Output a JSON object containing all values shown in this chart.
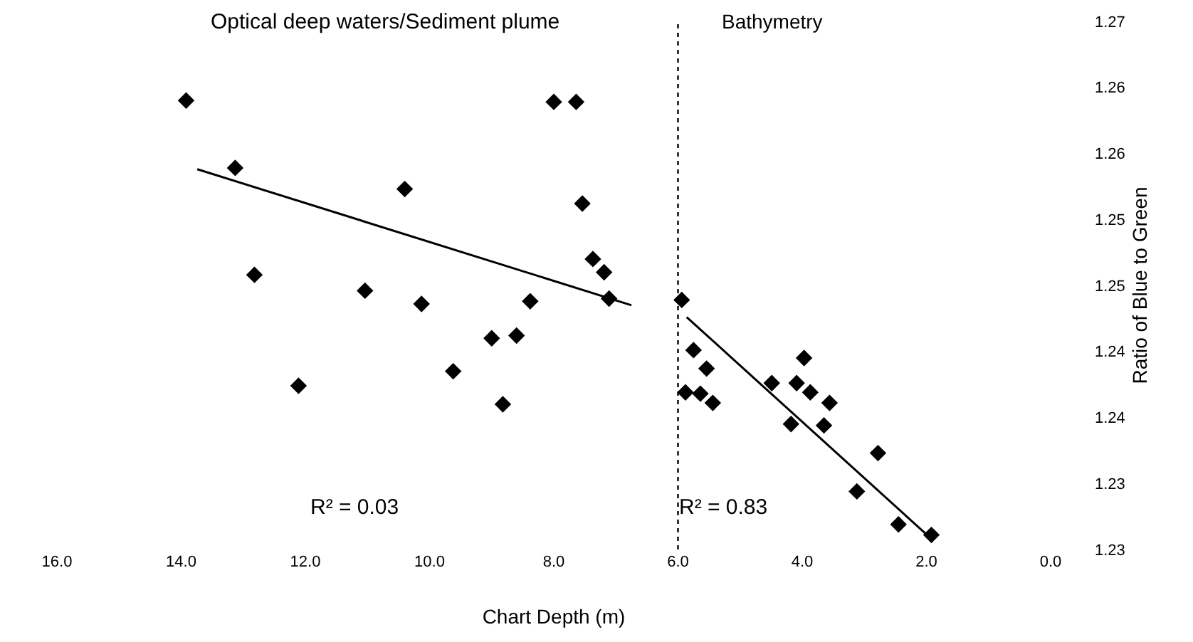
{
  "chart_data": {
    "type": "scatter",
    "xlabel": "Chart Depth (m)",
    "ylabel": "Ratio of Blue to Green",
    "marker": "diamond",
    "grid": false,
    "legend": false,
    "xlim": [
      16,
      0
    ],
    "xticks": [
      {
        "value": 16,
        "label": "16.0"
      },
      {
        "value": 14,
        "label": "14.0"
      },
      {
        "value": 12,
        "label": "12.0"
      },
      {
        "value": 10,
        "label": "10.0"
      },
      {
        "value": 8,
        "label": "8.0"
      },
      {
        "value": 6,
        "label": "6.0"
      },
      {
        "value": 4,
        "label": "4.0"
      },
      {
        "value": 2,
        "label": "2.0"
      },
      {
        "value": 0,
        "label": "0.0"
      }
    ],
    "ylim": [
      1.23,
      1.27
    ],
    "yticks": [
      1.23,
      {
        "value": 1.235,
        "label": "1.23"
      },
      1.24,
      {
        "value": 1.245,
        "label": "1.24"
      },
      1.25,
      {
        "value": 1.255,
        "label": "1.25"
      },
      1.26,
      {
        "value": 1.265,
        "label": "1.26"
      },
      1.27
    ],
    "series": [
      {
        "color": "#000000",
        "x": [
          13.92,
          13.13,
          12.82,
          12.11,
          11.04,
          10.4,
          10.13,
          9.62,
          9.0,
          8.82,
          8.6,
          8.38,
          8.0,
          7.64,
          7.54,
          7.37,
          7.19,
          7.11
        ],
        "values": [
          1.264,
          1.2589,
          1.2508,
          1.2424,
          1.2496,
          1.2573,
          1.2486,
          1.2435,
          1.246,
          1.241,
          1.2462,
          1.2488,
          1.2639,
          1.2639,
          1.2562,
          1.252,
          1.251,
          1.249
        ]
      },
      {
        "color": "#000000",
        "x": [
          5.94,
          5.75,
          5.54,
          5.88,
          5.64,
          5.44,
          4.49,
          4.18,
          3.97,
          4.09,
          3.87,
          3.56,
          3.65,
          2.78,
          3.12,
          2.45,
          1.92
        ],
        "values": [
          1.2489,
          1.2451,
          1.2437,
          1.2419,
          1.2418,
          1.2411,
          1.2426,
          1.2395,
          1.2445,
          1.2426,
          1.2419,
          1.2411,
          1.2394,
          1.2373,
          1.2344,
          1.2319,
          1.2311
        ]
      },
      {
        "type": "line",
        "marker": "none",
        "color": "#000000",
        "x": [
          13.74,
          6.75
        ],
        "values": [
          1.2588,
          1.2485
        ]
      },
      {
        "type": "line",
        "marker": "none",
        "color": "#000000",
        "x": [
          5.86,
          1.92
        ],
        "values": [
          1.2476,
          1.2308
        ]
      }
    ],
    "ref_lines": [
      {
        "axis": "x",
        "value": 6,
        "line_style": "dotted",
        "color": "#000000"
      }
    ],
    "annotations": [
      "Optical deep waters/Sediment plume",
      "Bathymetry",
      "R² = 0.03",
      "R² = 0.83"
    ]
  }
}
